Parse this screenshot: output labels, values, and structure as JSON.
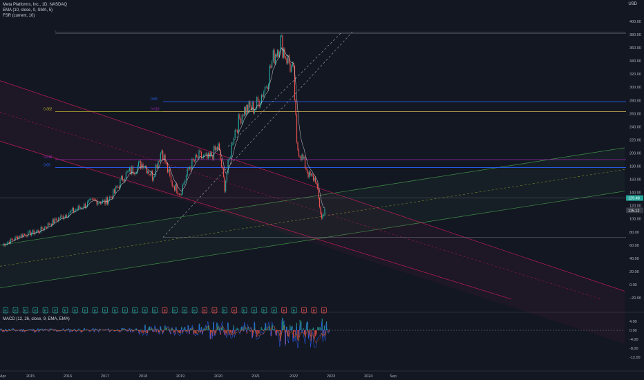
{
  "header": {
    "title": "Meta Platforms, Inc., 1D, NASDAQ",
    "indicators": [
      "EMA (10, close, 0, SMA, 5)",
      "FSR (current, 10)"
    ],
    "currency": "USD"
  },
  "macd": {
    "label": "MACD (12, 26, close, 9, EMA, EMA)",
    "ticks": [
      "4.00",
      "0.00",
      "-4.00",
      "-8.00",
      "-12.00"
    ],
    "values": [
      4,
      0,
      -4,
      -8,
      -12
    ]
  },
  "colors": {
    "background": "#131722",
    "candle_up": "#26a69a",
    "candle_down": "#ef5350",
    "fib_blue": "#2962ff",
    "fib_purple": "#9c27b0",
    "fib_olive": "#b5b52e",
    "channel_green": "#4caf50",
    "channel_pink": "#e91e63",
    "price_badge": "#26a69a"
  },
  "chart_data": {
    "type": "line",
    "series": [
      {
        "x": [
          "2014-04",
          "2014-07",
          "2014-10",
          "2015-01",
          "2015-04",
          "2015-07",
          "2015-10",
          "2016-01",
          "2016-04",
          "2016-07",
          "2016-10",
          "2017-01",
          "2017-04",
          "2017-07",
          "2017-10",
          "2018-01",
          "2018-04",
          "2018-07",
          "2018-10",
          "2019-01",
          "2019-04",
          "2019-07",
          "2019-10",
          "2020-01",
          "2020-03",
          "2020-06",
          "2020-09",
          "2021-01",
          "2021-04",
          "2021-07",
          "2021-09",
          "2021-11",
          "2022-01",
          "2022-02",
          "2022-04",
          "2022-06",
          "2022-08",
          "2022-10",
          "2022-11"
        ],
        "y": [
          60,
          68,
          75,
          78,
          82,
          92,
          100,
          108,
          115,
          122,
          128,
          125,
          140,
          165,
          175,
          185,
          165,
          205,
          155,
          140,
          180,
          195,
          190,
          210,
          150,
          230,
          265,
          270,
          300,
          350,
          370,
          345,
          320,
          210,
          190,
          165,
          160,
          100,
          115
        ]
      }
    ],
    "x_ticks": [
      "Apr",
      "2015",
      "2016",
      "2017",
      "2018",
      "2019",
      "2020",
      "2021",
      "2022",
      "2023",
      "2024",
      "Sep"
    ],
    "y_ticks": [
      "400.00",
      "380.00",
      "360.00",
      "340.00",
      "320.00",
      "300.00",
      "280.00",
      "260.00",
      "240.00",
      "220.00",
      "200.00",
      "180.00",
      "160.00",
      "140.00",
      "120.00",
      "100.00",
      "80.00",
      "60.00",
      "40.00",
      "20.00",
      "0.00",
      "−20.00"
    ],
    "y_values": [
      400,
      380,
      360,
      340,
      320,
      300,
      280,
      260,
      240,
      220,
      200,
      180,
      160,
      140,
      120,
      100,
      80,
      60,
      40,
      20,
      0,
      -20
    ],
    "ylim": [
      -20,
      400
    ],
    "price_labels": [
      "129.48",
      "115.12"
    ],
    "price_values": [
      129.48,
      115.12
    ],
    "fib_levels": [
      {
        "label": "0.65",
        "value": 278,
        "color": "#2962ff"
      },
      {
        "label": "0.618",
        "value": 263,
        "color": "#9c27b0"
      },
      {
        "label": "0.382",
        "value": 263,
        "color": "#b5b52e"
      },
      {
        "label": "0.618",
        "value": 190,
        "color": "#9c27b0"
      },
      {
        "label": "0.65",
        "value": 178,
        "color": "#2962ff"
      }
    ],
    "range_top": 384,
    "range_bottom": 72,
    "event_markers": [
      "E",
      "E",
      "E",
      "E",
      "E",
      "E",
      "E",
      "E",
      "E",
      "E",
      "E",
      "E",
      "E",
      "E",
      "E",
      "E",
      "E",
      "E",
      "E",
      "E",
      "E",
      "E",
      "E",
      "E",
      "E",
      "E",
      "E",
      "E",
      "E",
      "E",
      "E",
      "E",
      "E"
    ],
    "event_up": [
      true,
      true,
      true,
      true,
      true,
      true,
      true,
      true,
      true,
      true,
      true,
      true,
      true,
      true,
      true,
      true,
      false,
      true,
      true,
      true,
      false,
      false,
      true,
      false,
      true,
      true,
      true,
      true,
      false,
      true,
      false,
      false,
      false
    ],
    "grid": false
  }
}
